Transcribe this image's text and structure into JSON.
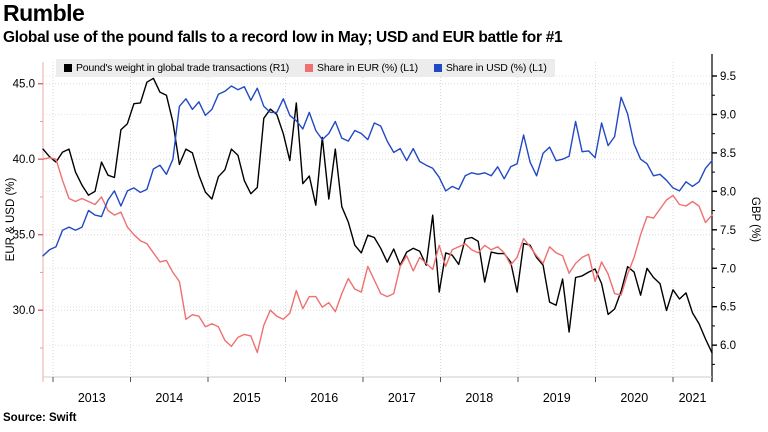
{
  "header": {
    "title": "Rumble",
    "subtitle": "Global use of the pound falls to a record low in May; USD and EUR battle for #1"
  },
  "source": "Source: Swift",
  "legend": [
    {
      "label": "Pound's weight in global trade transactions (R1)",
      "color": "#000000"
    },
    {
      "label": "Share in EUR (%) (L1)",
      "color": "#ee7070"
    },
    {
      "label": "Share in USD (%) (L1)",
      "color": "#2149c4"
    }
  ],
  "chart_data": {
    "type": "line",
    "title": "Global use of the pound falls to a record low in May; USD and EUR battle for #1",
    "frequency": "monthly",
    "x_start": "2012-11",
    "x_end": "2021-06",
    "x_tick_years": [
      2013,
      2014,
      2015,
      2016,
      2017,
      2018,
      2019,
      2020,
      2021
    ],
    "grid": "dotted",
    "legend_position": "top",
    "axes": {
      "left": {
        "label": "EUR & USD (%)",
        "ticks": [
          45.0,
          40.0,
          35.0,
          30.0
        ],
        "approx_range": [
          25.5,
          46.5
        ]
      },
      "right": {
        "label": "GBP (%)",
        "ticks": [
          9.5,
          9.0,
          8.5,
          8.0,
          7.5,
          7.0,
          6.5,
          6.0
        ],
        "approx_range": [
          5.55,
          9.7
        ]
      }
    },
    "series": [
      {
        "name": "Pound's weight in global trade transactions (R1)",
        "axis": "right",
        "color": "#000000",
        "values": [
          8.55,
          8.45,
          8.38,
          8.51,
          8.55,
          8.25,
          8.08,
          7.95,
          8.0,
          8.38,
          8.21,
          8.18,
          8.8,
          8.88,
          9.14,
          9.15,
          9.42,
          9.47,
          9.29,
          9.25,
          8.9,
          8.35,
          8.55,
          8.5,
          8.21,
          7.99,
          7.9,
          8.19,
          8.28,
          8.55,
          8.47,
          8.14,
          7.97,
          8.05,
          8.95,
          9.07,
          9.0,
          8.75,
          8.4,
          9.15,
          8.1,
          8.2,
          7.82,
          8.7,
          7.9,
          8.55,
          7.8,
          7.6,
          7.3,
          7.2,
          7.43,
          7.4,
          7.26,
          7.08,
          7.25,
          7.04,
          7.21,
          7.26,
          7.22,
          7.04,
          7.69,
          6.69,
          7.2,
          7.17,
          7.05,
          7.38,
          7.4,
          7.35,
          6.82,
          7.21,
          7.19,
          7.19,
          7.08,
          6.69,
          7.32,
          7.3,
          7.14,
          7.04,
          6.56,
          6.52,
          6.86,
          6.17,
          6.88,
          6.9,
          6.95,
          6.99,
          6.8,
          6.4,
          6.47,
          6.7,
          7.02,
          6.95,
          6.65,
          7.0,
          6.88,
          6.8,
          6.45,
          6.72,
          6.6,
          6.68,
          6.42,
          6.28,
          6.08,
          5.9
        ]
      },
      {
        "name": "Share in EUR (%) (L1)",
        "axis": "left",
        "color": "#ee7070",
        "values": [
          40.0,
          40.1,
          40.0,
          38.6,
          37.4,
          37.2,
          37.4,
          37.2,
          37.0,
          37.5,
          36.6,
          36.3,
          36.5,
          35.5,
          35.0,
          34.6,
          34.4,
          33.8,
          33.2,
          33.3,
          32.5,
          31.9,
          29.4,
          29.7,
          29.6,
          28.9,
          29.1,
          28.9,
          28.0,
          27.6,
          28.2,
          28.4,
          28.3,
          27.2,
          29.0,
          30.0,
          29.6,
          29.4,
          29.8,
          31.3,
          30.1,
          30.9,
          30.9,
          30.2,
          30.5,
          29.9,
          31.1,
          32.1,
          31.4,
          31.2,
          32.9,
          32.0,
          31.1,
          30.9,
          31.1,
          32.9,
          33.6,
          32.6,
          33.5,
          33.1,
          32.7,
          34.3,
          32.9,
          34.0,
          34.2,
          34.4,
          34.0,
          33.8,
          34.3,
          34.0,
          34.2,
          33.8,
          33.0,
          33.5,
          34.75,
          34.2,
          33.6,
          33.1,
          34.2,
          33.8,
          33.6,
          32.45,
          33.1,
          33.5,
          33.7,
          31.9,
          33.2,
          32.4,
          31.1,
          31.0,
          32.4,
          33.5,
          35.0,
          36.2,
          36.1,
          36.7,
          37.3,
          37.6,
          37.0,
          36.9,
          37.2,
          36.9,
          35.8,
          36.3
        ]
      },
      {
        "name": "Share in USD (%) (L1)",
        "axis": "left",
        "color": "#2149c4",
        "values": [
          33.6,
          34.0,
          34.2,
          35.3,
          35.5,
          35.3,
          35.5,
          36.6,
          36.3,
          36.2,
          37.3,
          37.9,
          36.9,
          37.9,
          38.1,
          37.8,
          38.0,
          39.35,
          39.6,
          39.0,
          40.0,
          43.5,
          44.0,
          43.3,
          43.8,
          42.9,
          43.3,
          44.3,
          44.5,
          44.85,
          44.6,
          44.8,
          43.9,
          44.7,
          43.5,
          43.1,
          43.1,
          44.0,
          42.9,
          42.55,
          42.0,
          43.1,
          41.9,
          41.3,
          41.7,
          42.5,
          41.4,
          41.2,
          41.9,
          41.7,
          41.3,
          42.4,
          42.2,
          41.2,
          40.45,
          40.7,
          39.9,
          40.7,
          39.85,
          39.6,
          39.4,
          38.8,
          37.9,
          38.2,
          38.0,
          38.9,
          39.1,
          39.0,
          39.1,
          38.9,
          39.5,
          38.7,
          39.5,
          39.7,
          41.6,
          39.8,
          38.9,
          40.4,
          40.8,
          39.9,
          40.0,
          40.2,
          42.5,
          40.5,
          40.55,
          40.1,
          42.4,
          40.9,
          41.5,
          44.1,
          43.0,
          41.0,
          40.0,
          39.7,
          38.9,
          39.0,
          38.6,
          38.1,
          37.9,
          38.5,
          38.2,
          38.5,
          39.4,
          39.9
        ]
      }
    ]
  }
}
